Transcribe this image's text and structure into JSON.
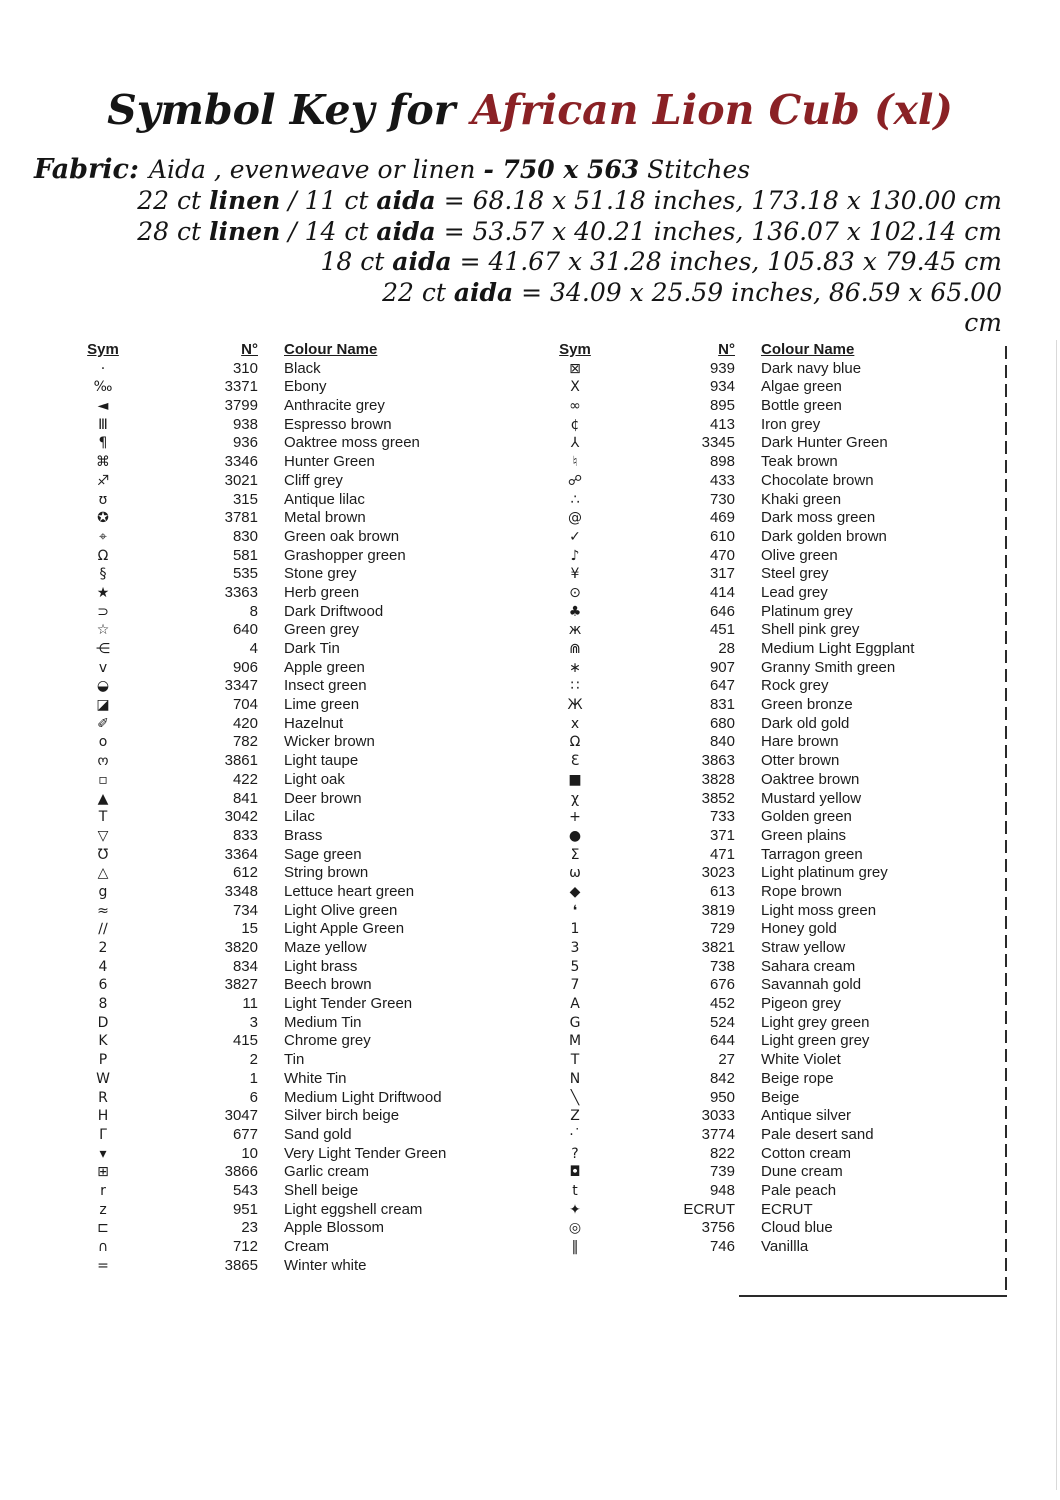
{
  "title": {
    "prefix": "Symbol Key for",
    "name": "African Lion Cub (xl)",
    "accent_color": "#8a2125"
  },
  "fabric": {
    "label": "Fabric:",
    "segments": [
      {
        "text": "Aida , evenweave or  linen ",
        "bold": false
      },
      {
        "text": "- 750 x 563",
        "bold": true
      },
      {
        "text": " Stitches",
        "bold": false
      }
    ]
  },
  "size_lines": [
    {
      "segments": [
        {
          "text": "22 ct ",
          "bold": false
        },
        {
          "text": "linen",
          "bold": true
        },
        {
          "text": " / 11 ct ",
          "bold": false
        },
        {
          "text": "aida",
          "bold": true
        },
        {
          "text": " = 68.18 x 51.18 inches, 173.18 x 130.00 cm",
          "bold": false
        }
      ]
    },
    {
      "segments": [
        {
          "text": "28 ct ",
          "bold": false
        },
        {
          "text": "linen",
          "bold": true
        },
        {
          "text": " / 14 ct ",
          "bold": false
        },
        {
          "text": "aida",
          "bold": true
        },
        {
          "text": " = 53.57 x 40.21 inches, 136.07 x 102.14 cm",
          "bold": false
        }
      ]
    },
    {
      "segments": [
        {
          "text": "18 ct ",
          "bold": false
        },
        {
          "text": "aida",
          "bold": true
        },
        {
          "text": "  = 41.67 x 31.28 inches, 105.83 x 79.45 cm",
          "bold": false
        }
      ]
    },
    {
      "segments": [
        {
          "text": "22 ct ",
          "bold": false
        },
        {
          "text": "aida",
          "bold": true
        },
        {
          "text": " = 34.09 x 25.59 inches, 86.59 x 65.00",
          "bold": false
        }
      ]
    },
    {
      "segments": [
        {
          "text": "cm",
          "bold": false
        }
      ]
    }
  ],
  "table": {
    "headers": {
      "sym": "Sym",
      "number": "N°",
      "colour": "Colour Name"
    },
    "left_rows": [
      [
        "·",
        "310",
        "Black"
      ],
      [
        "‰",
        "3371",
        "Ebony"
      ],
      [
        "◄",
        "3799",
        "Anthracite grey"
      ],
      [
        "Ⅲ",
        "938",
        "Espresso brown"
      ],
      [
        "¶",
        "936",
        "Oaktree moss green"
      ],
      [
        "⌘",
        "3346",
        "Hunter Green"
      ],
      [
        "♐",
        "3021",
        "Cliff grey"
      ],
      [
        "ʊ",
        "315",
        "Antique lilac"
      ],
      [
        "✪",
        "3781",
        "Metal brown"
      ],
      [
        "⌖",
        "830",
        "Green oak brown"
      ],
      [
        "Ω",
        "581",
        "Grashopper green"
      ],
      [
        "§",
        "535",
        "Stone grey"
      ],
      [
        "★",
        "3363",
        "Herb green"
      ],
      [
        "⊃",
        "8",
        "Dark Driftwood"
      ],
      [
        "☆",
        "640",
        "Green grey"
      ],
      [
        "⋲",
        "4",
        "Dark Tin"
      ],
      [
        "ᴠ",
        "906",
        "Apple green"
      ],
      [
        "◒",
        "3347",
        "Insect green"
      ],
      [
        "◪",
        "704",
        "Lime green"
      ],
      [
        "✐",
        "420",
        "Hazelnut"
      ],
      [
        "o",
        "782",
        "Wicker brown"
      ],
      [
        "ო",
        "3861",
        "Light taupe"
      ],
      [
        "▫",
        "422",
        "Light oak"
      ],
      [
        "▲",
        "841",
        "Deer brown"
      ],
      [
        "Т",
        "3042",
        "Lilac"
      ],
      [
        "▽",
        "833",
        "Brass"
      ],
      [
        "Ʊ",
        "3364",
        "Sage green"
      ],
      [
        "△",
        "612",
        "String brown"
      ],
      [
        "g",
        "3348",
        "Lettuce heart green"
      ],
      [
        "≈",
        "734",
        "Light Olive green"
      ],
      [
        "∕∕",
        "15",
        "Light Apple Green"
      ],
      [
        "2",
        "3820",
        "Maze yellow"
      ],
      [
        "4",
        "834",
        "Light brass"
      ],
      [
        "6",
        "3827",
        "Beech brown"
      ],
      [
        "8",
        "11",
        "Light Tender Green"
      ],
      [
        "D",
        "3",
        "Medium Tin"
      ],
      [
        "K",
        "415",
        "Chrome grey"
      ],
      [
        "P",
        "2",
        "Tin"
      ],
      [
        "W",
        "1",
        "White Tin"
      ],
      [
        "R",
        "6",
        "Medium Light Driftwood"
      ],
      [
        "H",
        "3047",
        "Silver birch beige"
      ],
      [
        "Γ",
        "677",
        "Sand gold"
      ],
      [
        "▾",
        "10",
        "Very Light Tender Green"
      ],
      [
        "⊞",
        "3866",
        "Garlic cream"
      ],
      [
        "r",
        "543",
        "Shell beige"
      ],
      [
        "z",
        "951",
        "Light eggshell cream"
      ],
      [
        "⊏",
        "23",
        "Apple Blossom"
      ],
      [
        "∩",
        "712",
        "Cream"
      ],
      [
        "=",
        "3865",
        "Winter white"
      ]
    ],
    "right_rows": [
      [
        "⊠",
        "939",
        "Dark navy blue"
      ],
      [
        "X",
        "934",
        "Algae green"
      ],
      [
        "∞",
        "895",
        "Bottle green"
      ],
      [
        "¢",
        "413",
        "Iron grey"
      ],
      [
        "⅄",
        "3345",
        "Dark Hunter Green"
      ],
      [
        "♮",
        "898",
        "Teak brown"
      ],
      [
        "☍",
        "433",
        "Chocolate brown"
      ],
      [
        "∴",
        "730",
        "Khaki green"
      ],
      [
        "@",
        "469",
        "Dark moss green"
      ],
      [
        "✓",
        "610",
        "Dark golden brown"
      ],
      [
        "♪",
        "470",
        "Olive green"
      ],
      [
        "¥",
        "317",
        "Steel grey"
      ],
      [
        "⊙",
        "414",
        "Lead grey"
      ],
      [
        "♣",
        "646",
        "Platinum grey"
      ],
      [
        "ж",
        "451",
        "Shell pink grey"
      ],
      [
        "⋒",
        "28",
        "Medium Light Eggplant"
      ],
      [
        "∗",
        "907",
        "Granny Smith green"
      ],
      [
        "∷",
        "647",
        "Rock grey"
      ],
      [
        "Ж",
        "831",
        "Green bronze"
      ],
      [
        "x",
        "680",
        "Dark old gold"
      ],
      [
        "Ω",
        "840",
        "Hare brown"
      ],
      [
        "Ɛ",
        "3863",
        "Otter brown"
      ],
      [
        "■",
        "3828",
        "Oaktree brown"
      ],
      [
        "χ",
        "3852",
        "Mustard yellow"
      ],
      [
        "+",
        "733",
        "Golden green"
      ],
      [
        "●",
        "371",
        "Green plains"
      ],
      [
        "Σ",
        "471",
        "Tarragon green"
      ],
      [
        "ω",
        "3023",
        "Light platinum grey"
      ],
      [
        "◆",
        "613",
        "Rope brown"
      ],
      [
        "❛",
        "3819",
        "Light moss green"
      ],
      [
        "1",
        "729",
        "Honey gold"
      ],
      [
        "3",
        "3821",
        "Straw yellow"
      ],
      [
        "5",
        "738",
        "Sahara cream"
      ],
      [
        "7",
        "676",
        "Savannah gold"
      ],
      [
        "A",
        "452",
        "Pigeon grey"
      ],
      [
        "G",
        "524",
        "Light grey green"
      ],
      [
        "M",
        "644",
        "Light green grey"
      ],
      [
        "T",
        "27",
        "White Violet"
      ],
      [
        "N",
        "842",
        "Beige rope"
      ],
      [
        "╲",
        "950",
        "Beige"
      ],
      [
        "Z",
        "3033",
        "Antique silver"
      ],
      [
        "·˙",
        "3774",
        "Pale desert sand"
      ],
      [
        "?",
        "822",
        "Cotton cream"
      ],
      [
        "◘",
        "739",
        "Dune cream"
      ],
      [
        "t",
        "948",
        "Pale peach"
      ],
      [
        "✦",
        "ECRUT",
        "ECRUT"
      ],
      [
        "◎",
        "3756",
        "Cloud blue"
      ],
      [
        "‖",
        "746",
        "Vanillla"
      ]
    ]
  }
}
